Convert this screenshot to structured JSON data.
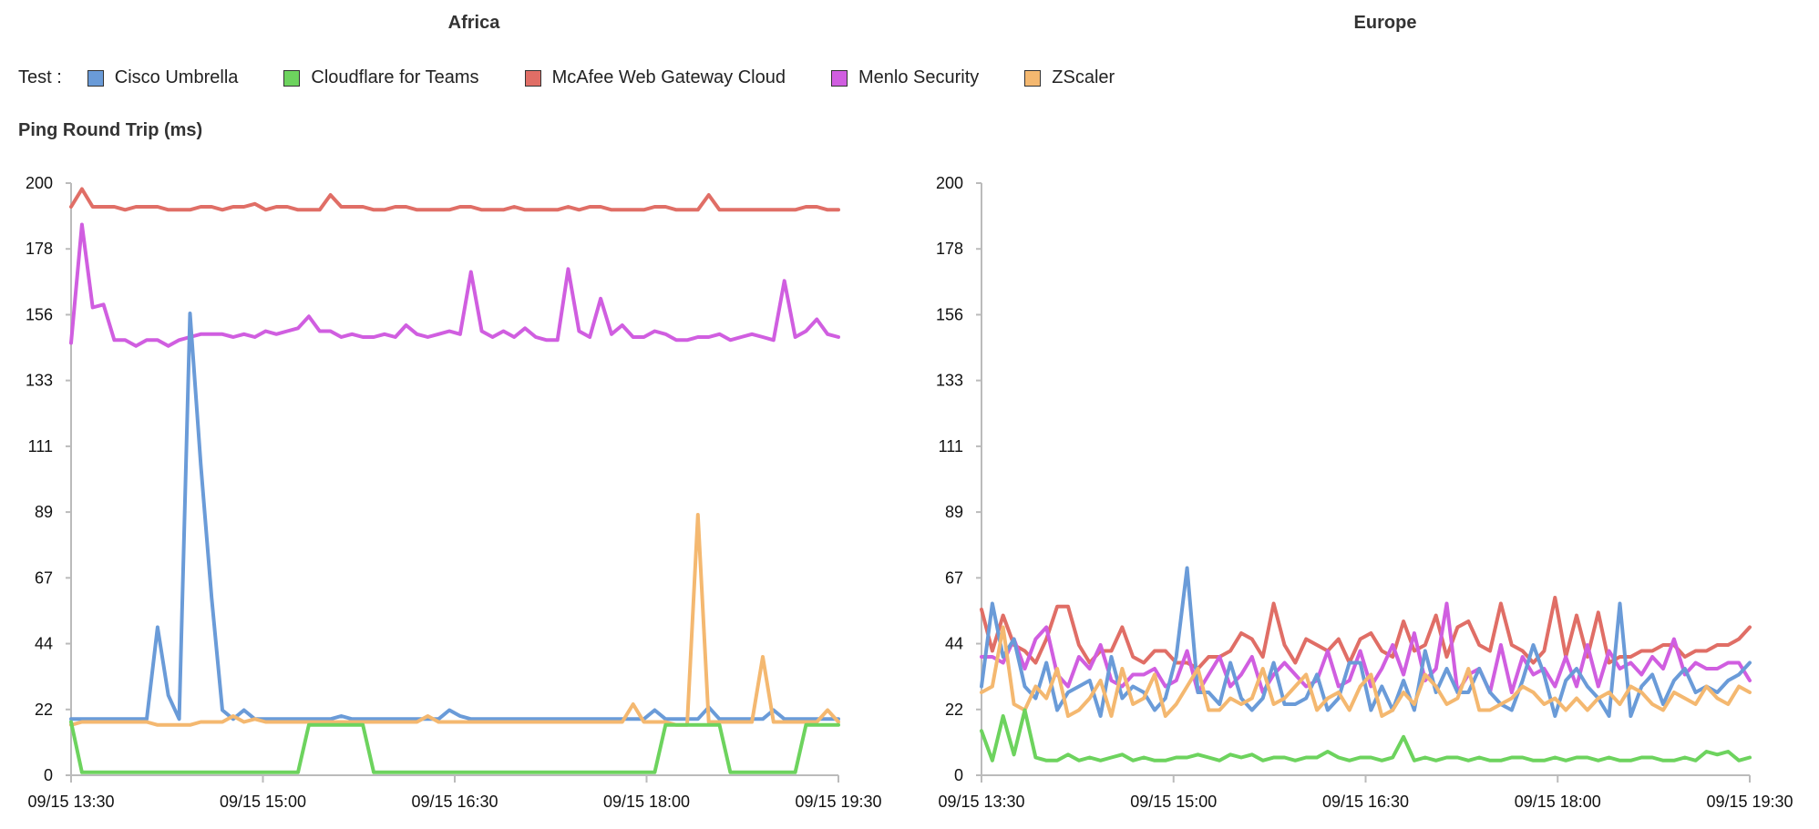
{
  "legend": {
    "label": "Test :",
    "items": [
      {
        "name": "Cisco Umbrella",
        "color": "#6a9bd8"
      },
      {
        "name": "Cloudflare for Teams",
        "color": "#6dd35e"
      },
      {
        "name": "McAfee Web Gateway Cloud",
        "color": "#e06e66"
      },
      {
        "name": "Menlo Security",
        "color": "#d05ee0"
      },
      {
        "name": "ZScaler",
        "color": "#f4b870"
      }
    ]
  },
  "ylabel": "Ping Round Trip (ms)",
  "chart_data": [
    {
      "type": "line",
      "title": "Africa",
      "ylabel": "Ping Round Trip (ms)",
      "ylim": [
        0,
        200
      ],
      "yticks": [
        "0",
        "22",
        "44",
        "67",
        "89",
        "111",
        "133",
        "156",
        "178",
        "200"
      ],
      "xticks": [
        "09/15 13:30",
        "09/15 15:00",
        "09/15 16:30",
        "09/15 18:00",
        "09/15 19:30"
      ],
      "x_start": "09/15 13:30",
      "x_end": "09/15 19:30",
      "series": [
        {
          "name": "McAfee Web Gateway Cloud",
          "color": "#e06e66",
          "values": [
            192,
            198,
            192,
            192,
            192,
            191,
            192,
            192,
            192,
            191,
            191,
            191,
            192,
            192,
            191,
            192,
            192,
            193,
            191,
            192,
            192,
            191,
            191,
            191,
            196,
            192,
            192,
            192,
            191,
            191,
            192,
            192,
            191,
            191,
            191,
            191,
            192,
            192,
            191,
            191,
            191,
            192,
            191,
            191,
            191,
            191,
            192,
            191,
            192,
            192,
            191,
            191,
            191,
            191,
            192,
            192,
            191,
            191,
            191,
            196,
            191,
            191,
            191,
            191,
            191,
            191,
            191,
            191,
            192,
            192,
            191,
            191
          ]
        },
        {
          "name": "Menlo Security",
          "color": "#d05ee0",
          "values": [
            146,
            186,
            158,
            159,
            147,
            147,
            145,
            147,
            147,
            145,
            147,
            148,
            149,
            149,
            149,
            148,
            149,
            148,
            150,
            149,
            150,
            151,
            155,
            150,
            150,
            148,
            149,
            148,
            148,
            149,
            148,
            152,
            149,
            148,
            149,
            150,
            149,
            170,
            150,
            148,
            150,
            148,
            151,
            148,
            147,
            147,
            171,
            150,
            148,
            161,
            149,
            152,
            148,
            148,
            150,
            149,
            147,
            147,
            148,
            148,
            149,
            147,
            148,
            149,
            148,
            147,
            167,
            148,
            150,
            154,
            149,
            148
          ]
        },
        {
          "name": "Cisco Umbrella",
          "color": "#6a9bd8",
          "values": [
            19,
            19,
            19,
            19,
            19,
            19,
            19,
            19,
            50,
            27,
            19,
            156,
            105,
            60,
            22,
            19,
            22,
            19,
            19,
            19,
            19,
            19,
            19,
            19,
            19,
            20,
            19,
            19,
            19,
            19,
            19,
            19,
            19,
            19,
            19,
            22,
            20,
            19,
            19,
            19,
            19,
            19,
            19,
            19,
            19,
            19,
            19,
            19,
            19,
            19,
            19,
            19,
            19,
            19,
            22,
            19,
            19,
            19,
            19,
            23,
            19,
            19,
            19,
            19,
            19,
            22,
            19,
            19,
            19,
            19,
            19,
            19
          ]
        },
        {
          "name": "ZScaler",
          "color": "#f4b870",
          "values": [
            17,
            18,
            18,
            18,
            18,
            18,
            18,
            18,
            17,
            17,
            17,
            17,
            18,
            18,
            18,
            20,
            18,
            19,
            18,
            18,
            18,
            18,
            18,
            18,
            18,
            18,
            18,
            18,
            18,
            18,
            18,
            18,
            18,
            20,
            18,
            18,
            18,
            18,
            18,
            18,
            18,
            18,
            18,
            18,
            18,
            18,
            18,
            18,
            18,
            18,
            18,
            18,
            24,
            18,
            18,
            18,
            17,
            17,
            88,
            18,
            18,
            18,
            18,
            18,
            40,
            18,
            18,
            18,
            18,
            18,
            22,
            18
          ]
        },
        {
          "name": "Cloudflare for Teams",
          "color": "#6dd35e",
          "values": [
            18,
            1,
            1,
            1,
            1,
            1,
            1,
            1,
            1,
            1,
            1,
            1,
            1,
            1,
            1,
            1,
            1,
            1,
            1,
            1,
            1,
            1,
            17,
            17,
            17,
            17,
            17,
            17,
            1,
            1,
            1,
            1,
            1,
            1,
            1,
            1,
            1,
            1,
            1,
            1,
            1,
            1,
            1,
            1,
            1,
            1,
            1,
            1,
            1,
            1,
            1,
            1,
            1,
            1,
            1,
            17,
            17,
            17,
            17,
            17,
            17,
            1,
            1,
            1,
            1,
            1,
            1,
            1,
            17,
            17,
            17,
            17
          ]
        }
      ]
    },
    {
      "type": "line",
      "title": "Europe",
      "ylabel": "",
      "ylim": [
        0,
        200
      ],
      "yticks": [
        "0",
        "22",
        "44",
        "67",
        "89",
        "111",
        "133",
        "156",
        "178",
        "200"
      ],
      "xticks": [
        "09/15 13:30",
        "09/15 15:00",
        "09/15 16:30",
        "09/15 18:00",
        "09/15 19:30"
      ],
      "x_start": "09/15 13:30",
      "x_end": "09/15 19:30",
      "series": [
        {
          "name": "McAfee Web Gateway Cloud",
          "color": "#e06e66",
          "values": [
            56,
            42,
            54,
            44,
            42,
            38,
            46,
            57,
            57,
            44,
            38,
            42,
            42,
            50,
            40,
            38,
            42,
            42,
            38,
            38,
            36,
            40,
            40,
            42,
            48,
            46,
            40,
            58,
            44,
            38,
            46,
            44,
            42,
            46,
            38,
            46,
            48,
            42,
            40,
            52,
            42,
            44,
            54,
            40,
            50,
            52,
            44,
            42,
            58,
            44,
            42,
            38,
            42,
            60,
            40,
            54,
            40,
            55,
            38,
            40,
            40,
            42,
            42,
            44,
            44,
            40,
            42,
            42,
            44,
            44,
            46,
            50
          ]
        },
        {
          "name": "Menlo Security",
          "color": "#d05ee0",
          "values": [
            40,
            40,
            38,
            46,
            36,
            46,
            50,
            34,
            30,
            40,
            36,
            44,
            32,
            30,
            34,
            34,
            36,
            30,
            32,
            42,
            28,
            34,
            40,
            30,
            34,
            40,
            28,
            34,
            38,
            34,
            30,
            32,
            42,
            30,
            32,
            42,
            30,
            36,
            44,
            34,
            48,
            32,
            36,
            58,
            28,
            34,
            36,
            28,
            44,
            28,
            40,
            34,
            36,
            30,
            40,
            30,
            44,
            30,
            42,
            36,
            38,
            34,
            40,
            36,
            46,
            34,
            38,
            36,
            36,
            38,
            38,
            32
          ]
        },
        {
          "name": "Cisco Umbrella",
          "color": "#6a9bd8",
          "values": [
            30,
            58,
            40,
            46,
            30,
            26,
            38,
            22,
            28,
            30,
            32,
            20,
            40,
            26,
            30,
            28,
            22,
            26,
            40,
            70,
            28,
            28,
            24,
            38,
            26,
            22,
            26,
            38,
            24,
            24,
            26,
            34,
            22,
            26,
            38,
            38,
            22,
            30,
            22,
            32,
            22,
            42,
            28,
            36,
            28,
            28,
            36,
            28,
            24,
            22,
            32,
            44,
            34,
            20,
            32,
            36,
            30,
            26,
            20,
            58,
            20,
            30,
            34,
            24,
            32,
            36,
            28,
            30,
            28,
            32,
            34,
            38
          ]
        },
        {
          "name": "ZScaler",
          "color": "#f4b870",
          "values": [
            28,
            30,
            50,
            24,
            22,
            30,
            26,
            36,
            20,
            22,
            26,
            32,
            20,
            36,
            24,
            26,
            34,
            20,
            24,
            30,
            36,
            22,
            22,
            26,
            24,
            26,
            36,
            24,
            26,
            30,
            34,
            22,
            26,
            28,
            22,
            30,
            34,
            20,
            22,
            28,
            24,
            34,
            30,
            24,
            26,
            36,
            22,
            22,
            24,
            26,
            30,
            28,
            24,
            26,
            22,
            26,
            22,
            26,
            28,
            24,
            30,
            28,
            24,
            22,
            28,
            26,
            24,
            30,
            26,
            24,
            30,
            28
          ]
        },
        {
          "name": "Cloudflare for Teams",
          "color": "#6dd35e",
          "values": [
            15,
            5,
            20,
            7,
            22,
            6,
            5,
            5,
            7,
            5,
            6,
            5,
            6,
            7,
            5,
            6,
            5,
            5,
            6,
            6,
            7,
            6,
            5,
            7,
            6,
            7,
            5,
            6,
            6,
            5,
            6,
            6,
            8,
            6,
            5,
            6,
            6,
            5,
            6,
            13,
            5,
            6,
            5,
            6,
            6,
            5,
            6,
            5,
            5,
            6,
            6,
            5,
            5,
            6,
            5,
            6,
            6,
            5,
            6,
            5,
            5,
            6,
            6,
            5,
            5,
            6,
            5,
            8,
            7,
            8,
            5,
            6
          ]
        }
      ]
    }
  ]
}
